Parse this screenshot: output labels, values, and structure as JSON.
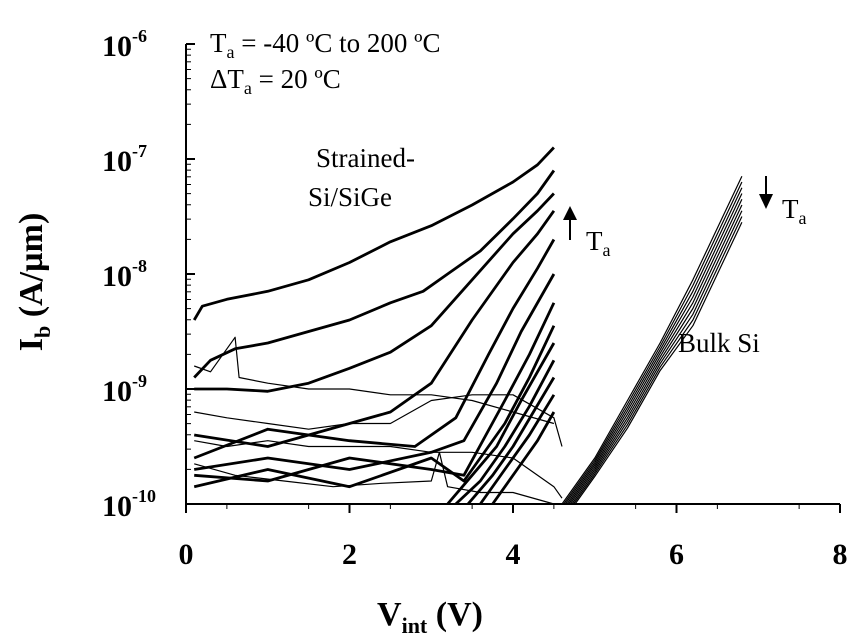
{
  "chart_data": {
    "type": "line",
    "title": "",
    "xlabel": {
      "main": "V",
      "sub": "int",
      "suffix": " (V)"
    },
    "ylabel": {
      "main": "I",
      "sub": "b",
      "suffix": " (A/µm)"
    },
    "x_scale": "linear",
    "y_scale": "log",
    "xlim": [
      0,
      8
    ],
    "ylim": [
      1e-10,
      1e-06
    ],
    "x_ticks": [
      {
        "value": 0,
        "label": "0"
      },
      {
        "value": 2,
        "label": "2"
      },
      {
        "value": 4,
        "label": "4"
      },
      {
        "value": 6,
        "label": "6"
      },
      {
        "value": 8,
        "label": "8"
      }
    ],
    "y_ticks": [
      {
        "value": 1e-10,
        "base": "10",
        "exp": "-10"
      },
      {
        "value": 1e-09,
        "base": "10",
        "exp": "-9"
      },
      {
        "value": 1e-08,
        "base": "10",
        "exp": "-8"
      },
      {
        "value": 1e-07,
        "base": "10",
        "exp": "-7"
      },
      {
        "value": 1e-06,
        "base": "10",
        "exp": "-6"
      }
    ],
    "grid": false,
    "legend": "none",
    "annotations": {
      "temp_range": {
        "pre": "T",
        "sub": "a",
        "post": " = -40 ºC to 200 ºC"
      },
      "temp_step": {
        "pre": "ΔT",
        "sub": "a",
        "post": " = 20 ºC"
      },
      "strained_line1": "Strained-",
      "strained_line2": "Si/SiGe",
      "strained_arrow": {
        "pre": "T",
        "sub": "a",
        "direction": "up"
      },
      "bulk_label": "Bulk Si",
      "bulk_arrow": {
        "pre": "T",
        "sub": "a",
        "direction": "down"
      }
    },
    "series": [
      {
        "group": "Strained-Si/SiGe",
        "weight": "thick",
        "points": [
          [
            0.1,
            -8.4
          ],
          [
            0.2,
            -8.28
          ],
          [
            0.5,
            -8.22
          ],
          [
            1,
            -8.15
          ],
          [
            1.5,
            -8.05
          ],
          [
            2,
            -7.9
          ],
          [
            2.5,
            -7.72
          ],
          [
            3,
            -7.58
          ],
          [
            3.5,
            -7.4
          ],
          [
            4,
            -7.2
          ],
          [
            4.3,
            -7.05
          ],
          [
            4.5,
            -6.9
          ]
        ]
      },
      {
        "group": "Strained-Si/SiGe",
        "weight": "thick",
        "points": [
          [
            0.1,
            -8.9
          ],
          [
            0.3,
            -8.75
          ],
          [
            0.6,
            -8.65
          ],
          [
            1,
            -8.6
          ],
          [
            1.5,
            -8.5
          ],
          [
            2,
            -8.4
          ],
          [
            2.5,
            -8.25
          ],
          [
            2.9,
            -8.15
          ],
          [
            3.2,
            -8.0
          ],
          [
            3.6,
            -7.8
          ],
          [
            4,
            -7.52
          ],
          [
            4.3,
            -7.3
          ],
          [
            4.5,
            -7.1
          ]
        ]
      },
      {
        "group": "Strained-Si/SiGe",
        "weight": "thick",
        "points": [
          [
            0.1,
            -9.0
          ],
          [
            0.5,
            -9.0
          ],
          [
            1,
            -9.02
          ],
          [
            1.5,
            -8.95
          ],
          [
            2,
            -8.82
          ],
          [
            2.5,
            -8.68
          ],
          [
            3,
            -8.45
          ],
          [
            3.5,
            -8.05
          ],
          [
            4,
            -7.65
          ],
          [
            4.3,
            -7.45
          ],
          [
            4.5,
            -7.3
          ]
        ]
      },
      {
        "group": "Strained-Si/SiGe",
        "weight": "thick",
        "points": [
          [
            0.1,
            -9.4
          ],
          [
            1,
            -9.5
          ],
          [
            2,
            -9.3
          ],
          [
            2.5,
            -9.2
          ],
          [
            3,
            -8.95
          ],
          [
            3.5,
            -8.4
          ],
          [
            4,
            -7.9
          ],
          [
            4.3,
            -7.65
          ],
          [
            4.5,
            -7.45
          ]
        ]
      },
      {
        "group": "Strained-Si/SiGe",
        "weight": "thick",
        "points": [
          [
            0.1,
            -9.6
          ],
          [
            1,
            -9.35
          ],
          [
            2,
            -9.45
          ],
          [
            2.8,
            -9.5
          ],
          [
            3.3,
            -9.25
          ],
          [
            3.7,
            -8.7
          ],
          [
            4,
            -8.3
          ],
          [
            4.3,
            -7.95
          ],
          [
            4.5,
            -7.7
          ]
        ]
      },
      {
        "group": "Strained-Si/SiGe",
        "weight": "thick",
        "points": [
          [
            0.1,
            -9.7
          ],
          [
            1,
            -9.6
          ],
          [
            2,
            -9.7
          ],
          [
            3,
            -9.55
          ],
          [
            3.4,
            -9.45
          ],
          [
            3.8,
            -8.95
          ],
          [
            4.1,
            -8.5
          ],
          [
            4.5,
            -8.0
          ]
        ]
      },
      {
        "group": "Strained-Si/SiGe",
        "weight": "thick",
        "points": [
          [
            0.1,
            -9.75
          ],
          [
            1,
            -9.8
          ],
          [
            2,
            -9.6
          ],
          [
            3,
            -9.7
          ],
          [
            3.4,
            -9.75
          ],
          [
            3.9,
            -9.1
          ],
          [
            4.2,
            -8.7
          ],
          [
            4.5,
            -8.25
          ]
        ]
      },
      {
        "group": "Strained-Si/SiGe",
        "weight": "thick",
        "points": [
          [
            0.1,
            -9.85
          ],
          [
            1,
            -9.7
          ],
          [
            2,
            -9.85
          ],
          [
            3,
            -9.6
          ],
          [
            3.4,
            -9.8
          ],
          [
            3.9,
            -9.3
          ],
          [
            4.2,
            -8.9
          ],
          [
            4.5,
            -8.45
          ]
        ]
      },
      {
        "group": "Strained-Si/SiGe",
        "weight": "thick",
        "points": [
          [
            3.2,
            -10.0
          ],
          [
            3.5,
            -9.75
          ],
          [
            3.8,
            -9.5
          ],
          [
            4.1,
            -9.1
          ],
          [
            4.5,
            -8.6
          ]
        ]
      },
      {
        "group": "Strained-Si/SiGe",
        "weight": "thick",
        "points": [
          [
            3.3,
            -10.0
          ],
          [
            3.6,
            -9.8
          ],
          [
            3.9,
            -9.5
          ],
          [
            4.2,
            -9.15
          ],
          [
            4.5,
            -8.75
          ]
        ]
      },
      {
        "group": "Strained-Si/SiGe",
        "weight": "thick",
        "points": [
          [
            3.45,
            -10.0
          ],
          [
            3.75,
            -9.75
          ],
          [
            4.0,
            -9.5
          ],
          [
            4.25,
            -9.2
          ],
          [
            4.5,
            -8.9
          ]
        ]
      },
      {
        "group": "Strained-Si/SiGe",
        "weight": "thick",
        "points": [
          [
            3.6,
            -10.0
          ],
          [
            3.9,
            -9.7
          ],
          [
            4.2,
            -9.4
          ],
          [
            4.5,
            -9.05
          ]
        ]
      },
      {
        "group": "Strained-Si/SiGe",
        "weight": "thick",
        "points": [
          [
            3.75,
            -10.0
          ],
          [
            4.05,
            -9.7
          ],
          [
            4.3,
            -9.45
          ],
          [
            4.5,
            -9.2
          ]
        ]
      },
      {
        "group": "Strained-Si/SiGe",
        "weight": "thin",
        "points": [
          [
            0.1,
            -8.8
          ],
          [
            0.3,
            -8.85
          ],
          [
            0.6,
            -8.55
          ],
          [
            0.65,
            -8.9
          ],
          [
            1,
            -8.95
          ],
          [
            1.5,
            -9.0
          ],
          [
            2,
            -9.0
          ],
          [
            2.5,
            -9.05
          ],
          [
            3,
            -9.05
          ],
          [
            3.5,
            -9.1
          ],
          [
            4,
            -9.2
          ],
          [
            4.5,
            -9.3
          ]
        ]
      },
      {
        "group": "Strained-Si/SiGe",
        "weight": "thin",
        "points": [
          [
            0.1,
            -9.2
          ],
          [
            0.5,
            -9.25
          ],
          [
            1,
            -9.3
          ],
          [
            1.5,
            -9.35
          ],
          [
            2,
            -9.3
          ],
          [
            2.5,
            -9.3
          ],
          [
            3,
            -9.1
          ],
          [
            3.5,
            -9.05
          ],
          [
            4,
            -9.05
          ],
          [
            4.5,
            -9.25
          ],
          [
            4.6,
            -9.5
          ]
        ]
      },
      {
        "group": "Strained-Si/SiGe",
        "weight": "thin",
        "points": [
          [
            0.1,
            -9.45
          ],
          [
            0.5,
            -9.5
          ],
          [
            1,
            -9.45
          ],
          [
            1.5,
            -9.5
          ],
          [
            2,
            -9.5
          ],
          [
            2.5,
            -9.5
          ],
          [
            3,
            -9.55
          ],
          [
            3.5,
            -9.55
          ],
          [
            4,
            -9.6
          ],
          [
            4.5,
            -9.85
          ],
          [
            4.6,
            -9.95
          ]
        ]
      },
      {
        "group": "Strained-Si/SiGe",
        "weight": "thin",
        "points": [
          [
            0.1,
            -9.65
          ],
          [
            0.6,
            -9.75
          ],
          [
            1.2,
            -9.8
          ],
          [
            1.8,
            -9.85
          ],
          [
            2.4,
            -9.82
          ],
          [
            3,
            -9.8
          ],
          [
            3.1,
            -9.55
          ],
          [
            3.2,
            -9.85
          ],
          [
            3.6,
            -9.9
          ],
          [
            4,
            -9.9
          ],
          [
            4.5,
            -10.0
          ]
        ]
      },
      {
        "group": "Bulk Si",
        "weight": "thin",
        "points": [
          [
            4.6,
            -10.0
          ],
          [
            5.0,
            -9.6
          ],
          [
            5.4,
            -9.1
          ],
          [
            5.8,
            -8.6
          ],
          [
            6.2,
            -8.05
          ],
          [
            6.5,
            -7.6
          ],
          [
            6.8,
            -7.15
          ]
        ]
      },
      {
        "group": "Bulk Si",
        "weight": "thin",
        "points": [
          [
            4.62,
            -10.0
          ],
          [
            5.0,
            -9.62
          ],
          [
            5.4,
            -9.13
          ],
          [
            5.8,
            -8.63
          ],
          [
            6.2,
            -8.1
          ],
          [
            6.5,
            -7.65
          ],
          [
            6.8,
            -7.2
          ]
        ]
      },
      {
        "group": "Bulk Si",
        "weight": "thin",
        "points": [
          [
            4.64,
            -10.0
          ],
          [
            5.0,
            -9.64
          ],
          [
            5.4,
            -9.16
          ],
          [
            5.8,
            -8.66
          ],
          [
            6.2,
            -8.15
          ],
          [
            6.5,
            -7.7
          ],
          [
            6.8,
            -7.25
          ]
        ]
      },
      {
        "group": "Bulk Si",
        "weight": "thin",
        "points": [
          [
            4.66,
            -10.0
          ],
          [
            5.0,
            -9.66
          ],
          [
            5.4,
            -9.19
          ],
          [
            5.8,
            -8.69
          ],
          [
            6.2,
            -8.2
          ],
          [
            6.5,
            -7.75
          ],
          [
            6.8,
            -7.3
          ]
        ]
      },
      {
        "group": "Bulk Si",
        "weight": "thin",
        "points": [
          [
            4.68,
            -10.0
          ],
          [
            5.0,
            -9.68
          ],
          [
            5.4,
            -9.22
          ],
          [
            5.8,
            -8.72
          ],
          [
            6.2,
            -8.25
          ],
          [
            6.5,
            -7.8
          ],
          [
            6.8,
            -7.35
          ]
        ]
      },
      {
        "group": "Bulk Si",
        "weight": "thin",
        "points": [
          [
            4.7,
            -10.0
          ],
          [
            5.0,
            -9.7
          ],
          [
            5.4,
            -9.25
          ],
          [
            5.8,
            -8.75
          ],
          [
            6.2,
            -8.3
          ],
          [
            6.5,
            -7.85
          ],
          [
            6.8,
            -7.4
          ]
        ]
      },
      {
        "group": "Bulk Si",
        "weight": "thin",
        "points": [
          [
            4.72,
            -10.0
          ],
          [
            5.0,
            -9.72
          ],
          [
            5.4,
            -9.28
          ],
          [
            5.8,
            -8.78
          ],
          [
            6.2,
            -8.35
          ],
          [
            6.5,
            -7.9
          ],
          [
            6.8,
            -7.45
          ]
        ]
      },
      {
        "group": "Bulk Si",
        "weight": "thin",
        "points": [
          [
            4.74,
            -10.0
          ],
          [
            5.0,
            -9.74
          ],
          [
            5.4,
            -9.31
          ],
          [
            5.8,
            -8.81
          ],
          [
            6.2,
            -8.4
          ],
          [
            6.5,
            -7.95
          ],
          [
            6.8,
            -7.5
          ]
        ]
      },
      {
        "group": "Bulk Si",
        "weight": "thin",
        "points": [
          [
            4.76,
            -10.0
          ],
          [
            5.0,
            -9.76
          ],
          [
            5.4,
            -9.34
          ],
          [
            5.8,
            -8.84
          ],
          [
            6.2,
            -8.45
          ],
          [
            6.5,
            -8.0
          ],
          [
            6.8,
            -7.55
          ]
        ]
      }
    ]
  }
}
